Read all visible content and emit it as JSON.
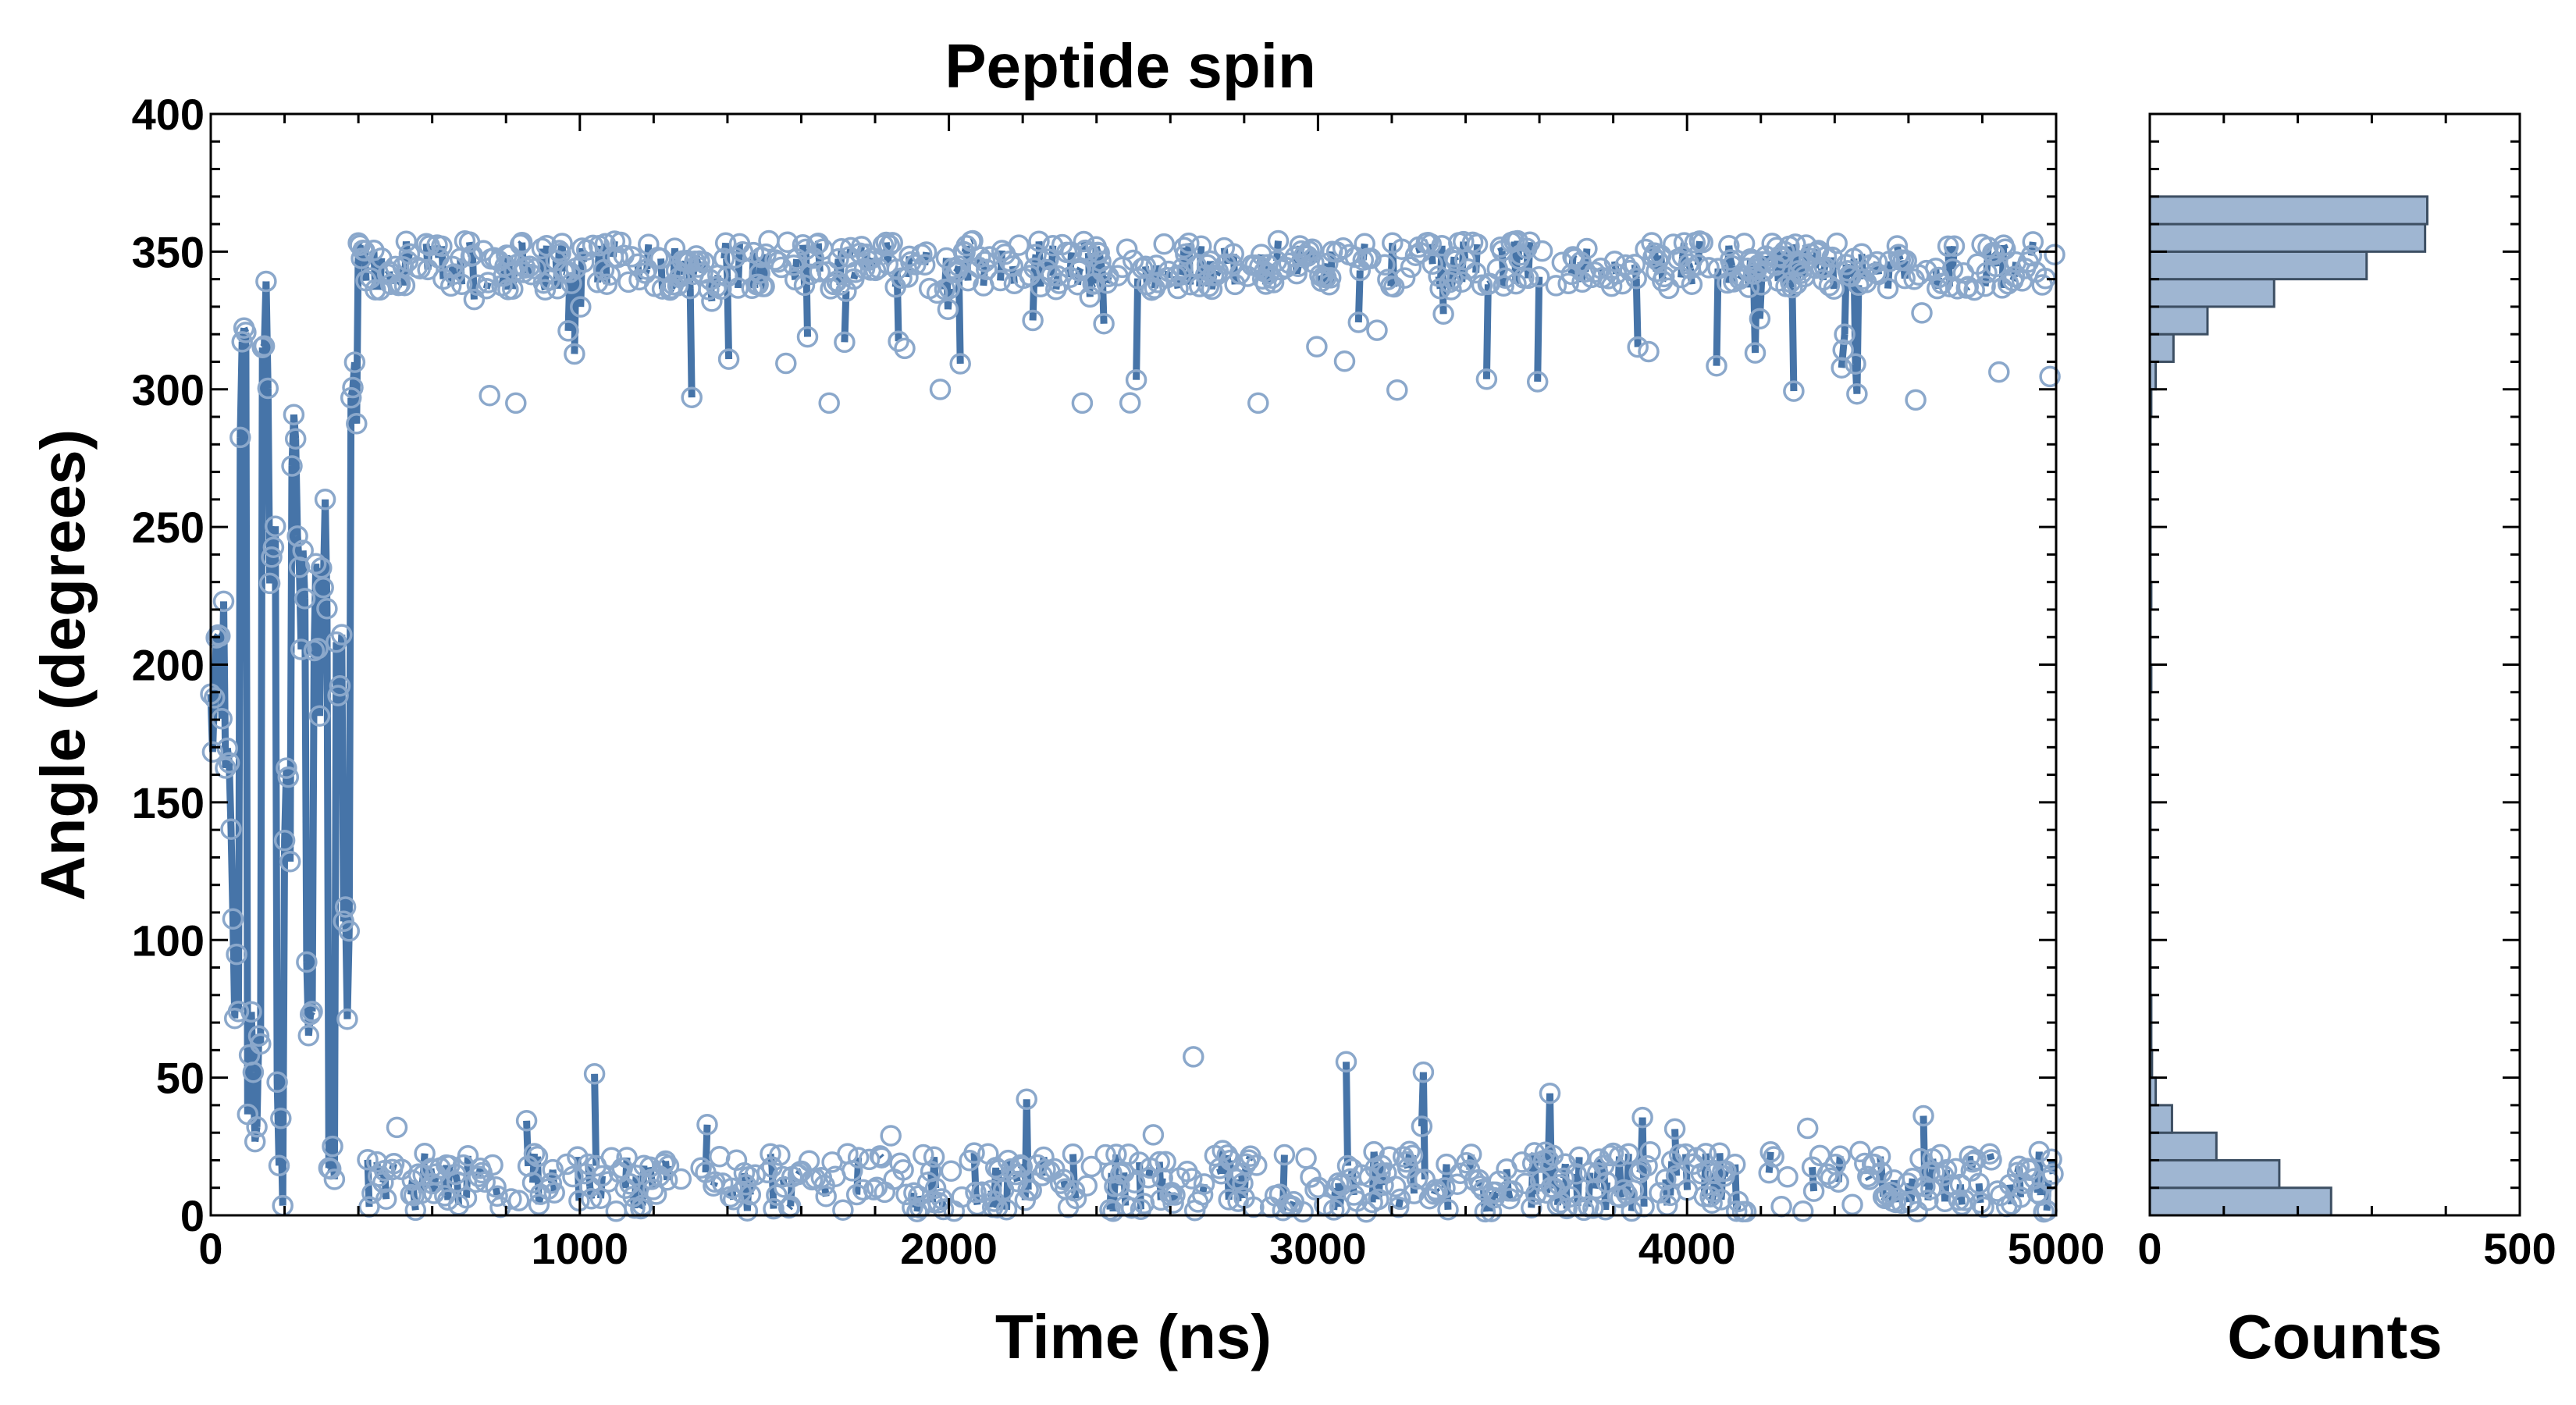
{
  "chart_data": [
    {
      "type": "scatter",
      "title": "Peptide spin",
      "xlabel": "Time (ns)",
      "ylabel": "Angle (degrees)",
      "xlim": [
        0,
        5000
      ],
      "ylim": [
        0,
        400
      ],
      "xticks": [
        0,
        1000,
        2000,
        3000,
        4000,
        5000
      ],
      "yticks": [
        0,
        50,
        100,
        150,
        200,
        250,
        300,
        350,
        400
      ],
      "grid": false,
      "color": "#4674a8",
      "marker_color": "#8ba8cb",
      "series": [
        {
          "style": "line+open-circles",
          "segments": [
            {
              "x_range": [
                0,
                400
              ],
              "description_values": [
                180,
                200,
                150,
                90,
                300,
                60,
                40,
                320,
                250,
                20,
                140,
                270,
                230,
                80,
                210,
                250,
                30,
                190,
                100,
                300
              ]
            },
            {
              "x_range": [
                400,
                5000
              ],
              "upper_band": {
                "mean": 345,
                "min": 295,
                "max": 360
              },
              "lower_band": {
                "mean": 10,
                "min": 0,
                "max": 58
              }
            }
          ]
        }
      ]
    },
    {
      "type": "bar",
      "orientation": "horizontal",
      "xlabel": "Counts",
      "xlim": [
        0,
        500
      ],
      "xticks": [
        0,
        500
      ],
      "ylim": [
        0,
        400
      ],
      "bin_width": 10,
      "bins_lower_edges": [
        0,
        10,
        20,
        30,
        40,
        50,
        60,
        70,
        80,
        90,
        100,
        110,
        120,
        130,
        140,
        150,
        160,
        170,
        180,
        190,
        200,
        210,
        220,
        230,
        240,
        250,
        260,
        270,
        280,
        290,
        300,
        310,
        320,
        330,
        340,
        350,
        360,
        370,
        380,
        390
      ],
      "values": [
        245,
        175,
        90,
        30,
        8,
        3,
        2,
        2,
        1,
        1,
        1,
        1,
        1,
        1,
        1,
        1,
        1,
        1,
        1,
        2,
        1,
        1,
        2,
        1,
        1,
        1,
        1,
        1,
        1,
        2,
        8,
        32,
        78,
        168,
        293,
        372,
        375,
        0,
        0,
        0
      ],
      "bar_color": "#9fb6d2",
      "edge_color": "#3d4f63"
    }
  ]
}
